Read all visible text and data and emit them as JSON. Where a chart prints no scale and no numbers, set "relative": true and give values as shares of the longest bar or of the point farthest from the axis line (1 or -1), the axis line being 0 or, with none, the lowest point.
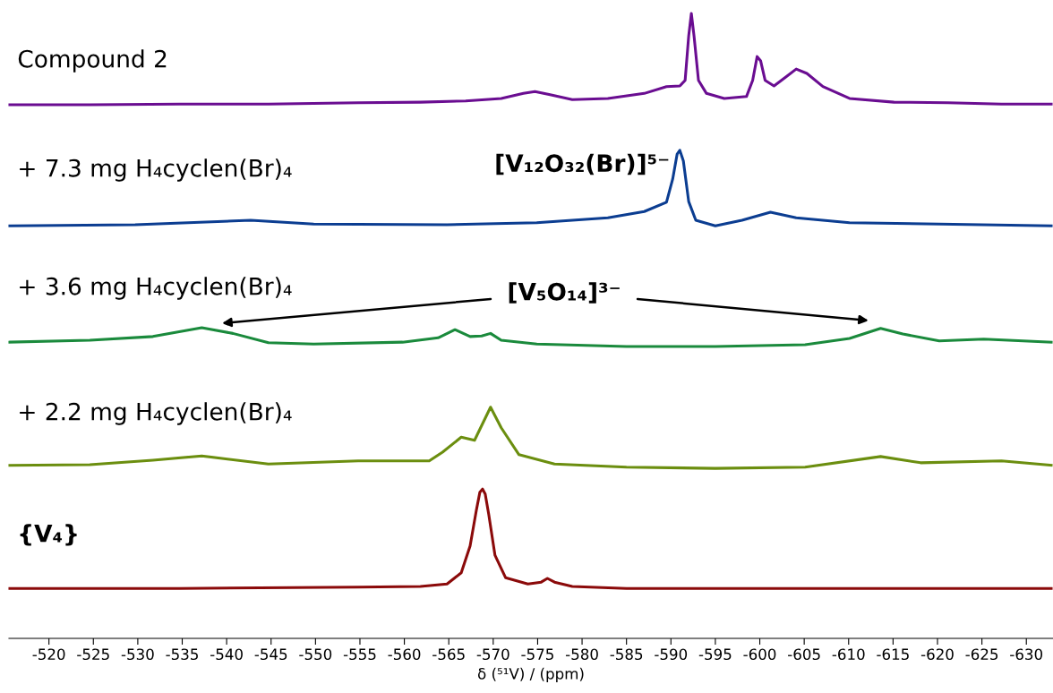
{
  "chart_data": {
    "type": "line",
    "relative": true,
    "xlim": [
      -515.5,
      -633
    ],
    "xlabel": "δ (⁵¹V) / (ppm)",
    "legend": false,
    "xticks": [
      -520,
      -525,
      -530,
      -535,
      -540,
      -545,
      -550,
      -555,
      -560,
      -565,
      -570,
      -575,
      -580,
      -585,
      -590,
      -595,
      -600,
      -605,
      -610,
      -615,
      -620,
      -625,
      -630
    ],
    "annotations": [
      {
        "text": "[V₁₂O₃₂(Br)]⁵⁻",
        "x": -591.0,
        "y": 0.781
      },
      "[V₅O₁₄]³⁻"
    ],
    "series": [
      {
        "name": "Compound 2",
        "color": "#6a0d91",
        "x": [
          -515.6,
          -524.6,
          -534.7,
          -544.7,
          -554.8,
          -561.8,
          -566.9,
          -570.9,
          -573.4,
          -574.7,
          -576.4,
          -578.9,
          -582.9,
          -587.0,
          -589.5,
          -591.0,
          -591.6,
          -592.0,
          -592.3,
          -592.6,
          -593.1,
          -594.0,
          -596.0,
          -598.5,
          -599.2,
          -599.7,
          -600.1,
          -600.6,
          -601.6,
          -602.9,
          -604.1,
          -605.3,
          -607.1,
          -610.1,
          -615.1,
          -621.2,
          -627.2,
          -632.8
        ],
        "values": [
          0.854,
          0.854,
          0.855,
          0.855,
          0.857,
          0.858,
          0.86,
          0.864,
          0.872,
          0.875,
          0.87,
          0.862,
          0.864,
          0.872,
          0.883,
          0.884,
          0.893,
          0.964,
          1.0,
          0.964,
          0.893,
          0.872,
          0.864,
          0.867,
          0.893,
          0.931,
          0.924,
          0.893,
          0.884,
          0.898,
          0.911,
          0.904,
          0.883,
          0.864,
          0.858,
          0.857,
          0.855,
          0.855
        ]
      },
      {
        "name": "+ 7.3 mg H₄cyclen(Br)₄",
        "color": "#0b3d91",
        "x": [
          -515.6,
          -529.7,
          -542.7,
          -549.8,
          -564.8,
          -574.9,
          -582.9,
          -587.0,
          -589.5,
          -590.2,
          -590.7,
          -591.0,
          -591.4,
          -592.0,
          -592.8,
          -595.0,
          -598.0,
          -601.2,
          -604.1,
          -610.1,
          -620.2,
          -632.8
        ],
        "values": [
          0.66,
          0.662,
          0.669,
          0.663,
          0.662,
          0.665,
          0.673,
          0.683,
          0.698,
          0.735,
          0.775,
          0.781,
          0.764,
          0.699,
          0.669,
          0.66,
          0.669,
          0.682,
          0.673,
          0.665,
          0.663,
          0.66
        ]
      },
      {
        "name": "+ 3.6 mg H₄cyclen(Br)₄",
        "color": "#1a8a3c",
        "x": [
          -515.6,
          -524.6,
          -531.7,
          -537.2,
          -540.7,
          -544.7,
          -549.8,
          -559.8,
          -563.8,
          -565.7,
          -567.4,
          -568.7,
          -569.7,
          -570.9,
          -574.9,
          -585.0,
          -595.0,
          -605.1,
          -610.1,
          -613.6,
          -616.1,
          -620.2,
          -625.2,
          -632.8
        ],
        "values": [
          0.474,
          0.477,
          0.483,
          0.497,
          0.488,
          0.473,
          0.471,
          0.474,
          0.481,
          0.494,
          0.483,
          0.484,
          0.488,
          0.477,
          0.471,
          0.467,
          0.467,
          0.47,
          0.48,
          0.496,
          0.487,
          0.476,
          0.479,
          0.474
        ]
      },
      {
        "name": "+ 2.2 mg H₄cyclen(Br)₄",
        "color": "#6b8e0f",
        "x": [
          -515.6,
          -524.6,
          -531.7,
          -537.2,
          -544.7,
          -554.8,
          -562.8,
          -564.3,
          -566.4,
          -567.9,
          -569.7,
          -570.9,
          -572.9,
          -576.9,
          -585.0,
          -595.0,
          -605.1,
          -613.6,
          -618.1,
          -627.2,
          -632.8
        ],
        "values": [
          0.277,
          0.278,
          0.285,
          0.292,
          0.279,
          0.284,
          0.284,
          0.298,
          0.322,
          0.317,
          0.37,
          0.337,
          0.294,
          0.279,
          0.274,
          0.272,
          0.274,
          0.291,
          0.281,
          0.284,
          0.277
        ]
      },
      {
        "name": "{V₄}",
        "color": "#8b0a0a",
        "x": [
          -515.6,
          -534.7,
          -554.8,
          -561.8,
          -564.8,
          -566.4,
          -567.4,
          -568.1,
          -568.5,
          -568.8,
          -569.1,
          -569.5,
          -570.2,
          -571.4,
          -573.9,
          -575.4,
          -576.1,
          -576.9,
          -578.9,
          -585.0,
          -605.1,
          -632.8
        ],
        "values": [
          0.08,
          0.08,
          0.082,
          0.083,
          0.087,
          0.105,
          0.148,
          0.205,
          0.234,
          0.239,
          0.231,
          0.198,
          0.133,
          0.097,
          0.087,
          0.09,
          0.096,
          0.09,
          0.083,
          0.08,
          0.08,
          0.08
        ]
      }
    ]
  }
}
